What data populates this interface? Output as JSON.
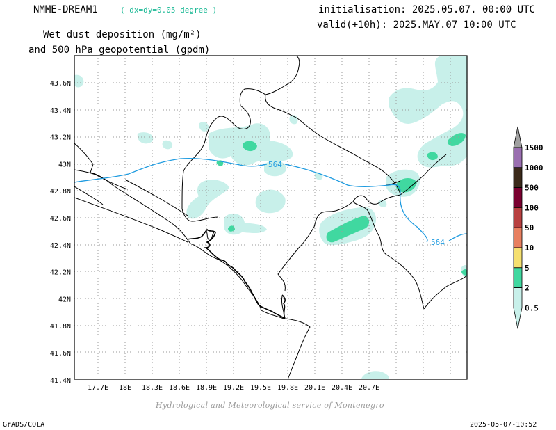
{
  "header": {
    "model": "NMME-DREAM1",
    "resolution": "( dx=dy=0.05 degree )",
    "initialisation": "initialisation: 2025.05.07. 00:00 UTC",
    "valid": "valid(+10h): 2025.MAY.07 10:00 UTC",
    "title_line1": "Wet dust deposition (mg/m²)",
    "title_line2": "and 500 hPa geopotential (gpdm)"
  },
  "axes": {
    "x_labels": [
      "17.7E",
      "18E",
      "18.3E",
      "18.6E",
      "18.9E",
      "19.2E",
      "19.5E",
      "19.8E",
      "20.1E",
      "20.4E",
      "20.7E"
    ],
    "y_labels": [
      "43.6N",
      "43.4N",
      "43.2N",
      "43N",
      "42.8N",
      "42.6N",
      "42.4N",
      "42.2N",
      "42N",
      "41.8N",
      "41.6N",
      "41.4N"
    ]
  },
  "contour": {
    "value_label_1": "564",
    "value_label_2": "564",
    "color": "#1e9be0"
  },
  "colorbar": {
    "labels": [
      "1500",
      "1000",
      "500",
      "100",
      "50",
      "10",
      "5",
      "2",
      "0.5"
    ],
    "colors": [
      "#9a6fb0",
      "#3b2a1a",
      "#7a0030",
      "#b84040",
      "#e88060",
      "#f5e070",
      "#40d8a0",
      "#c8f0ea"
    ],
    "arrow_top_color": "#a0a0a0"
  },
  "shading_colors": {
    "light": "#c8f0ea",
    "medium": "#40d8a0"
  },
  "footer": {
    "credit": "Hydrological and Meteorological service of Montenegro",
    "software": "GrADS/COLA",
    "timestamp": "2025-05-07-10:52"
  }
}
